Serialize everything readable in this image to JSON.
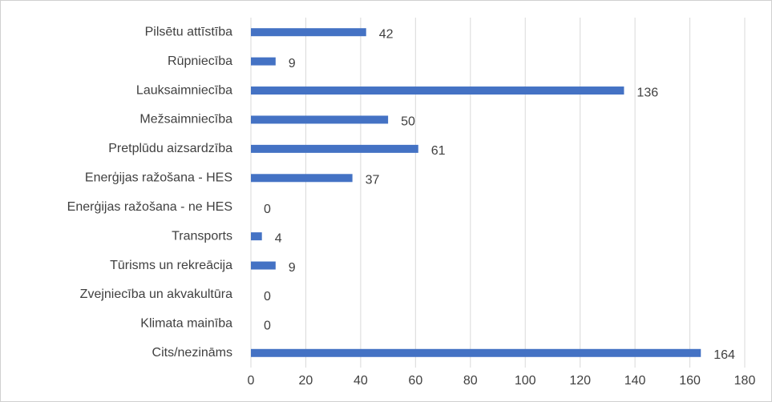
{
  "chart_data": {
    "type": "bar",
    "orientation": "horizontal",
    "categories": [
      "Pilsētu attīstība",
      "Rūpniecība",
      "Lauksaimniecība",
      "Mežsaimniecība",
      "Pretplūdu aizsardzība",
      "Enerģijas ražošana - HES",
      "Enerģijas ražošana - ne HES",
      "Transports",
      "Tūrisms un rekreācija",
      "Zvejniecība un akvakultūra",
      "Klimata mainība",
      "Cits/nezināms"
    ],
    "values": [
      42,
      9,
      136,
      50,
      61,
      37,
      0,
      4,
      9,
      0,
      0,
      164
    ],
    "color": "#4472c4",
    "xlim": [
      0,
      180
    ],
    "xticks": [
      0,
      20,
      40,
      60,
      80,
      100,
      120,
      140,
      160,
      180
    ],
    "grid": true
  }
}
